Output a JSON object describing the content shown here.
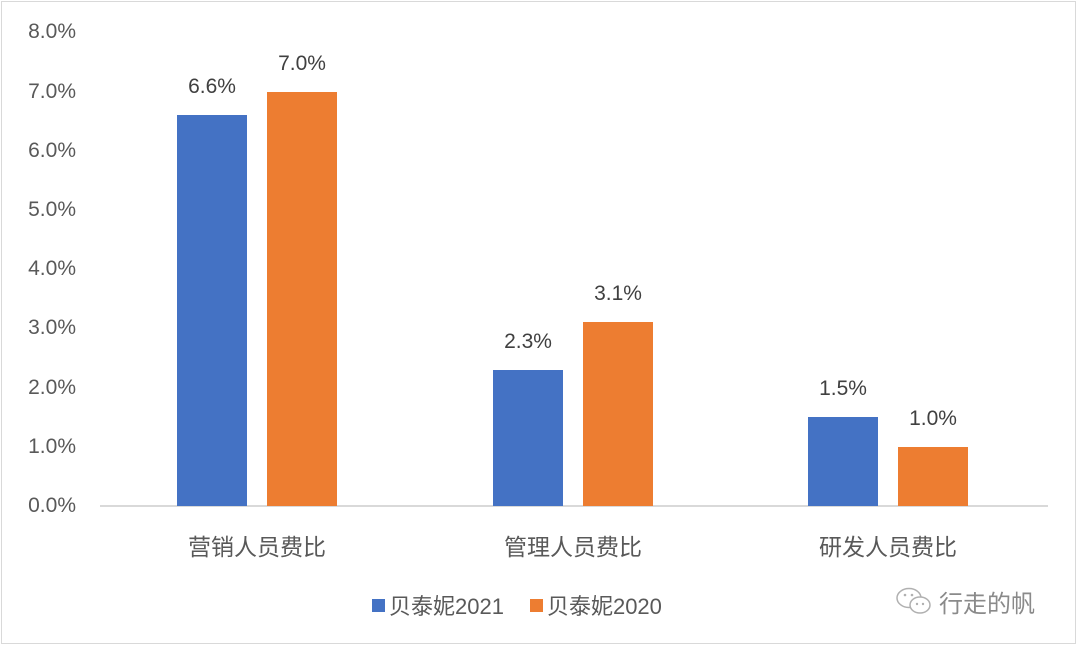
{
  "chart_data": {
    "type": "bar",
    "title": "",
    "xlabel": "",
    "ylabel": "",
    "categories": [
      "营销人员费比",
      "管理人员费比",
      "研发人员费比"
    ],
    "series": [
      {
        "name": "贝泰妮2021",
        "color": "#4472c4",
        "values": [
          6.6,
          2.3,
          1.5
        ],
        "labels": [
          "6.6%",
          "2.3%",
          "1.5%"
        ]
      },
      {
        "name": "贝泰妮2020",
        "color": "#ed7d31",
        "values": [
          7.0,
          3.1,
          1.0
        ],
        "labels": [
          "7.0%",
          "3.1%",
          "1.0%"
        ]
      }
    ],
    "ylim": [
      0,
      8
    ],
    "yticks": [
      "0.0%",
      "1.0%",
      "2.0%",
      "3.0%",
      "4.0%",
      "5.0%",
      "6.0%",
      "7.0%",
      "8.0%"
    ],
    "grid": false,
    "legend_position": "bottom"
  },
  "watermark": {
    "text": "行走的帆",
    "icon": "wechat-icon"
  }
}
